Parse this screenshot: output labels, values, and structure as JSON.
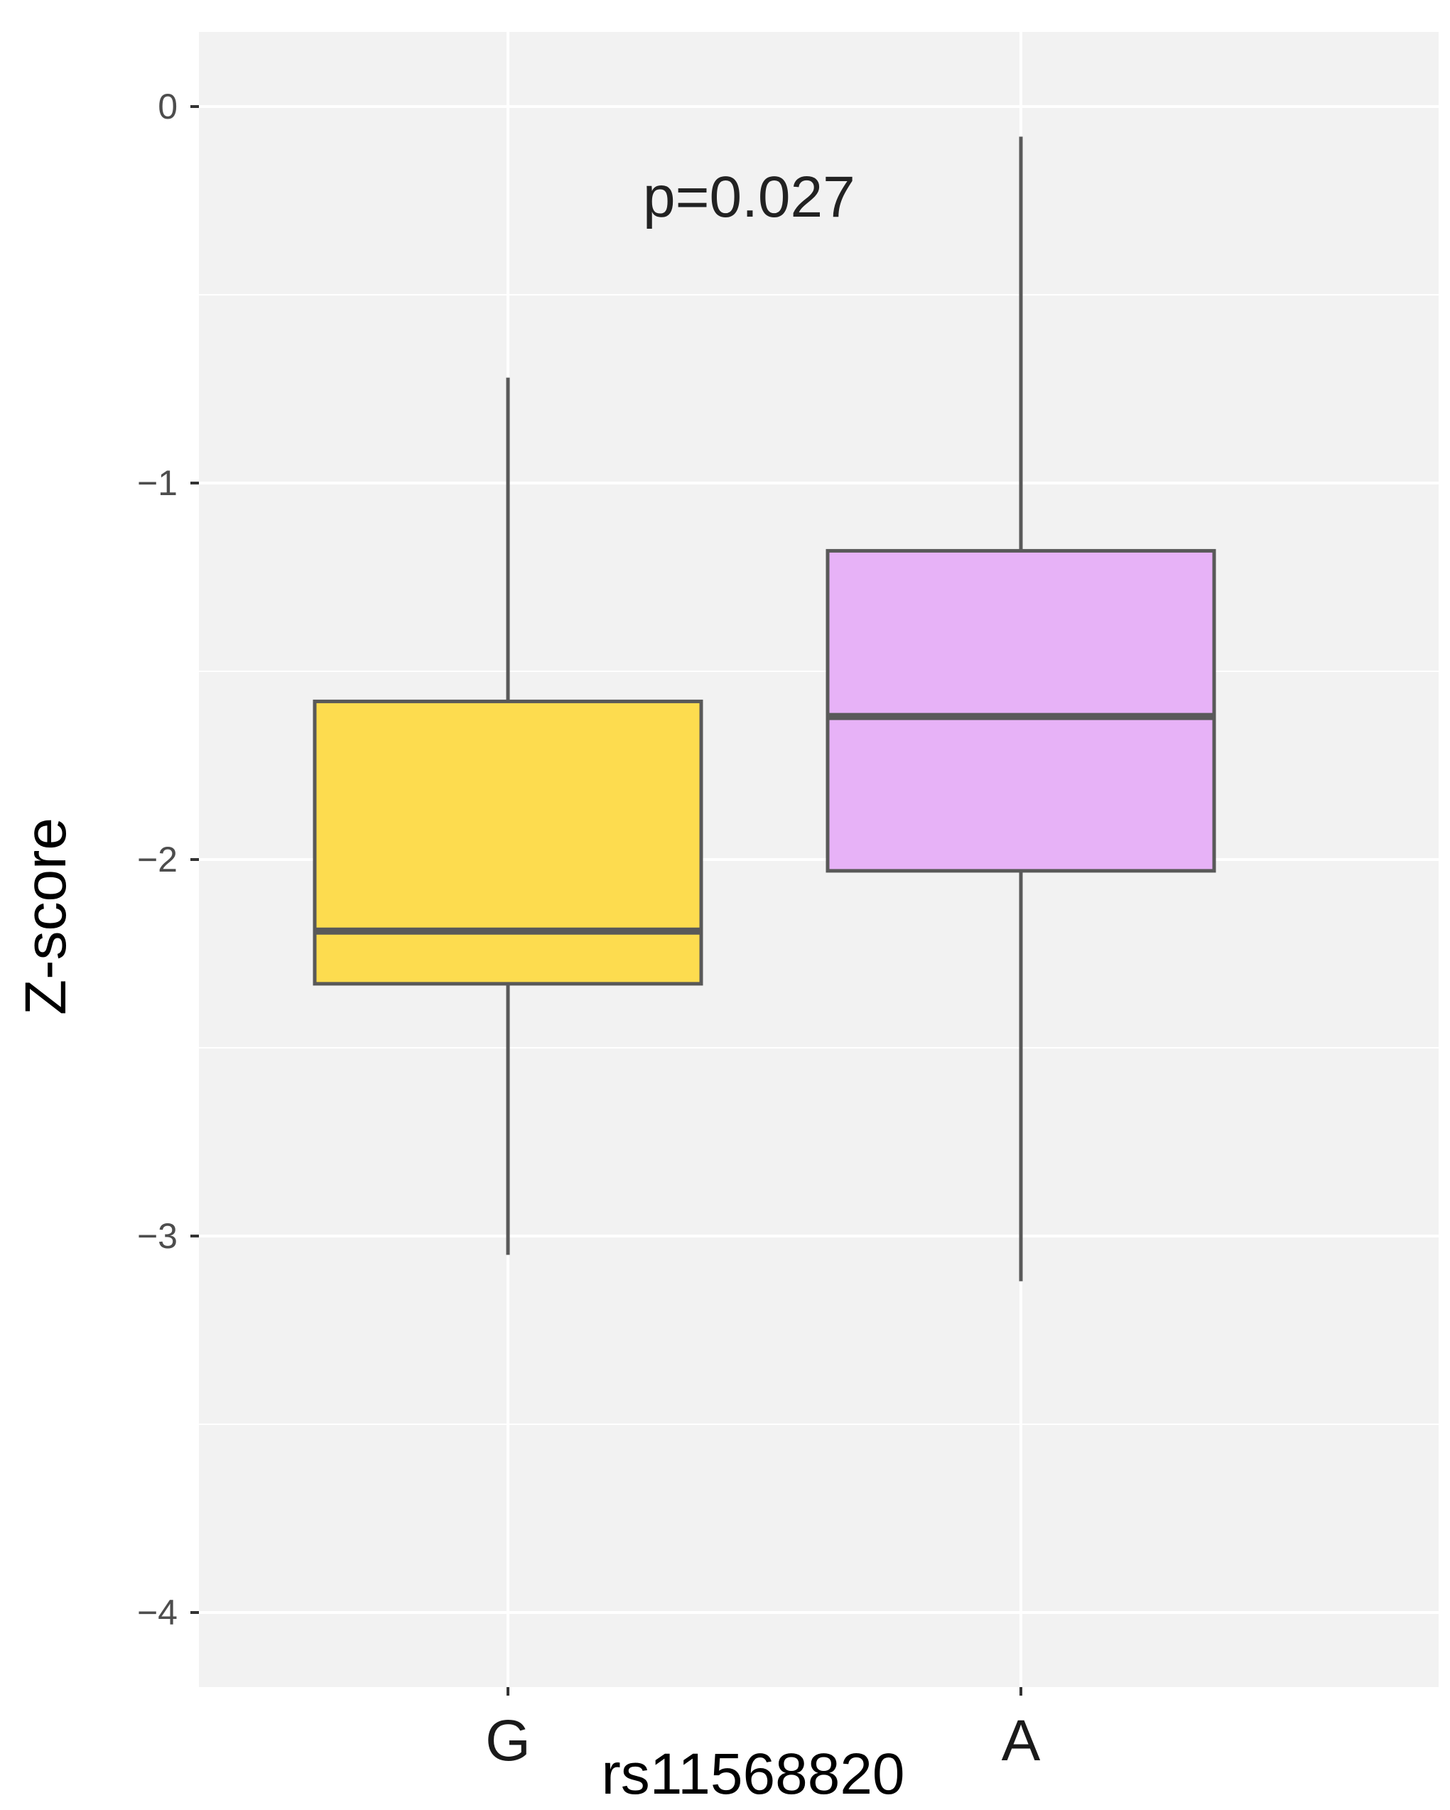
{
  "chart_data": {
    "type": "box",
    "xlabel": "rs11568820",
    "ylabel": "Z-score",
    "ylim": [
      -4.2,
      0.2
    ],
    "yticks": [
      0,
      -1,
      -2,
      -3,
      -4
    ],
    "ytick_labels": [
      "0",
      "−1",
      "−2",
      "−3",
      "−4"
    ],
    "categories": [
      "G",
      "A"
    ],
    "boxes": [
      {
        "category": "G",
        "whisker_low": -3.05,
        "q1": -2.33,
        "median": -2.19,
        "q3": -1.58,
        "whisker_high": -0.72,
        "fill": "#fddc4f"
      },
      {
        "category": "A",
        "whisker_low": -3.12,
        "q1": -2.03,
        "median": -1.62,
        "q3": -1.18,
        "whisker_high": -0.08,
        "fill": "#e7b2f7"
      }
    ],
    "annotation": {
      "text": "p=0.027",
      "x": 1.47,
      "y": -0.24
    },
    "grid": true,
    "colors": {
      "panel_bg": "#f2f2f2",
      "grid": "#ffffff",
      "box_line": "#595959"
    }
  }
}
